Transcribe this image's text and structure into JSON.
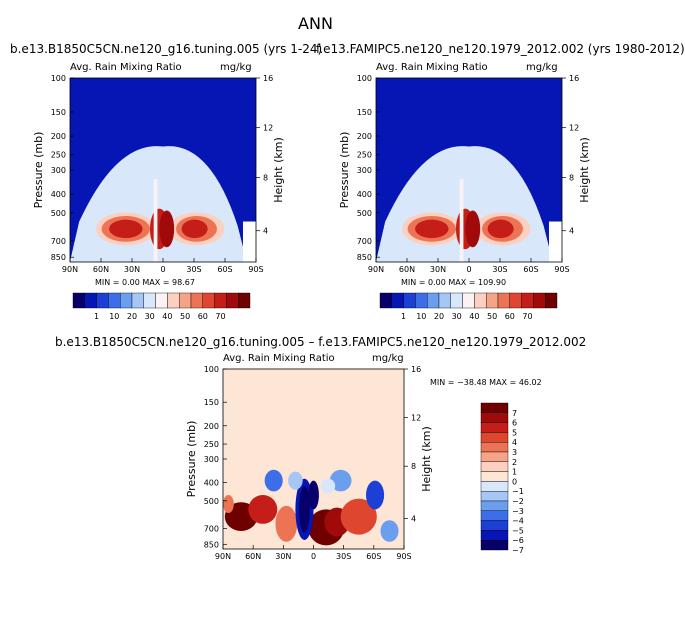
{
  "page": {
    "title": "ANN"
  },
  "chart_data": [
    {
      "type": "heatmap",
      "title": "b.e13.B1850C5CN.ne120_g16.tuning.005 (yrs 1-24)",
      "left_label": "Avg. Rain Mixing Ratio",
      "right_label": "mg/kg",
      "ylabel": "Pressure (mb)",
      "y2label": "Height (km)",
      "xticks": [
        "90N",
        "60N",
        "30N",
        "0",
        "30S",
        "60S",
        "90S"
      ],
      "yticks": [
        "100",
        "150",
        "200",
        "250",
        "300",
        "400",
        "500",
        "700",
        "850"
      ],
      "y2ticks": [
        "16",
        "12",
        "8",
        "4"
      ],
      "stats": "MIN =    0.00   MAX =   98.67",
      "colorbar_labels": [
        "1",
        "10",
        "20",
        "30",
        "40",
        "50",
        "60",
        "70"
      ]
    },
    {
      "type": "heatmap",
      "title": "f.e13.FAMIPC5.ne120_ne120.1979_2012.002 (yrs 1980-2012)",
      "left_label": "Avg. Rain Mixing Ratio",
      "right_label": "mg/kg",
      "ylabel": "Pressure (mb)",
      "y2label": "Height (km)",
      "xticks": [
        "90N",
        "60N",
        "30N",
        "0",
        "30S",
        "60S",
        "90S"
      ],
      "yticks": [
        "100",
        "150",
        "200",
        "250",
        "300",
        "400",
        "500",
        "700",
        "850"
      ],
      "y2ticks": [
        "16",
        "12",
        "8",
        "4"
      ],
      "stats": "MIN =    0.00   MAX =  109.90",
      "colorbar_labels": [
        "1",
        "10",
        "20",
        "30",
        "40",
        "50",
        "60",
        "70"
      ]
    },
    {
      "type": "heatmap",
      "title": "b.e13.B1850C5CN.ne120_g16.tuning.005 – f.e13.FAMIPC5.ne120_ne120.1979_2012.002",
      "left_label": "Avg. Rain Mixing Ratio",
      "right_label": "mg/kg",
      "ylabel": "Pressure (mb)",
      "y2label": "Height (km)",
      "xticks": [
        "90N",
        "60N",
        "30N",
        "0",
        "30S",
        "60S",
        "90S"
      ],
      "yticks": [
        "100",
        "150",
        "200",
        "250",
        "300",
        "400",
        "500",
        "700",
        "850"
      ],
      "y2ticks": [
        "16",
        "12",
        "8",
        "4"
      ],
      "stats": "MIN = −38.48   MAX =   46.02",
      "colorbar_labels": [
        "7",
        "6",
        "5",
        "4",
        "3",
        "2",
        "1",
        "0",
        "−1",
        "−2",
        "−3",
        "−4",
        "−5",
        "−6",
        "−7"
      ]
    }
  ],
  "colors": {
    "seq": [
      "#08006a",
      "#0616b4",
      "#1c3fd6",
      "#3b6ee8",
      "#6c9ef0",
      "#a6c6f6",
      "#d8e8fa",
      "#fbf3f3",
      "#fbd0c0",
      "#f5a487",
      "#ec7353",
      "#de4630",
      "#c51e18",
      "#a00a0a",
      "#6f0000"
    ],
    "div": [
      "#6f0000",
      "#a00a0a",
      "#c51e18",
      "#de4630",
      "#ec7353",
      "#f5a487",
      "#fbd0c0",
      "#fde6d6",
      "#d8e8fa",
      "#a6c6f6",
      "#6c9ef0",
      "#3b6ee8",
      "#1c3fd6",
      "#0616b4",
      "#08006a"
    ]
  }
}
